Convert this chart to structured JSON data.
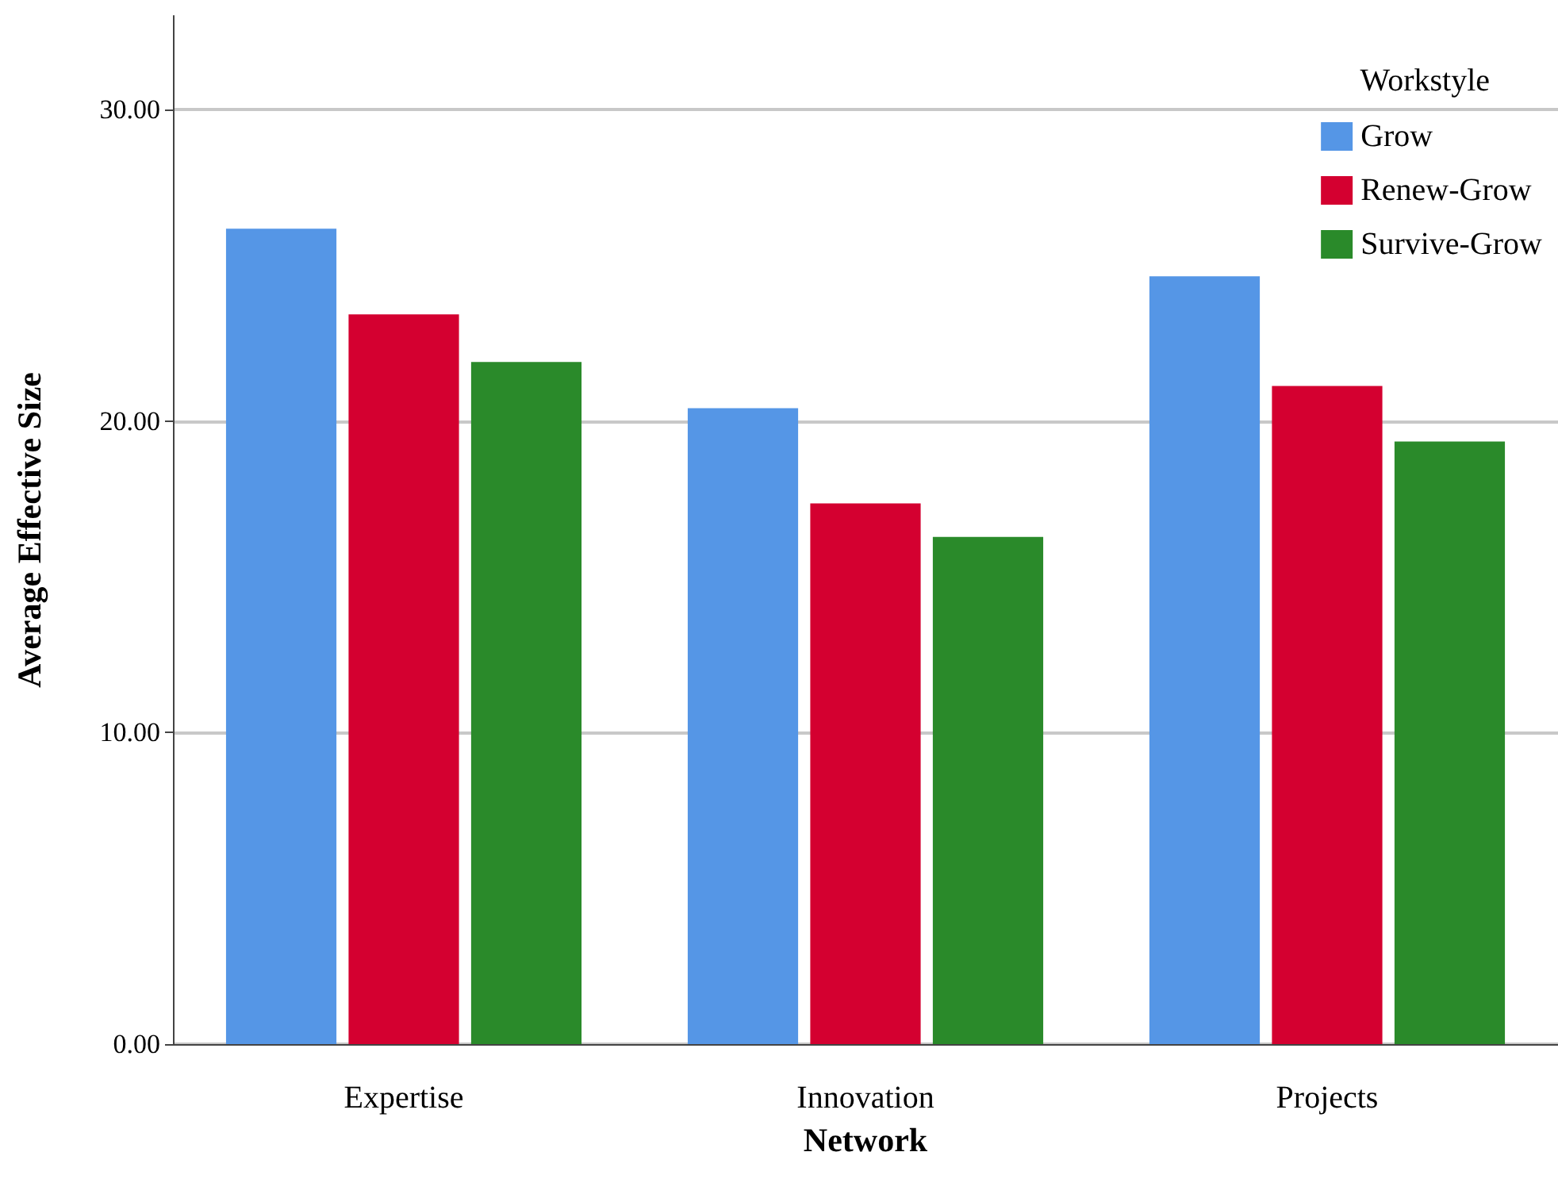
{
  "chart_data": {
    "type": "bar",
    "xlabel": "Network",
    "ylabel": "Average Effective Size",
    "legend_title": "Workstyle",
    "categories": [
      "Expertise",
      "Innovation",
      "Projects"
    ],
    "series": [
      {
        "name": "Grow",
        "color": "#5596e6",
        "values": [
          26.17,
          20.41,
          24.64
        ]
      },
      {
        "name": "Renew-Grow",
        "color": "#d40030",
        "values": [
          23.42,
          17.35,
          21.12
        ]
      },
      {
        "name": "Survive-Grow",
        "color": "#2a8a2a",
        "values": [
          21.89,
          16.28,
          19.34
        ]
      }
    ],
    "ylim": [
      0,
      33
    ],
    "yticks": [
      {
        "value": 0,
        "label": "0.00"
      },
      {
        "value": 10,
        "label": "10.00"
      },
      {
        "value": 20,
        "label": "20.00"
      },
      {
        "value": 30,
        "label": "30.00"
      }
    ],
    "grid": "y",
    "legend": "top right"
  }
}
